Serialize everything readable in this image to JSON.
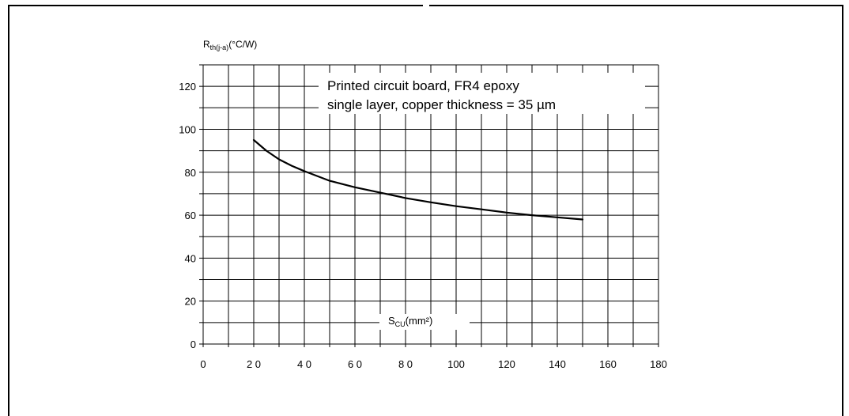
{
  "figure_title": "",
  "chart_data": {
    "type": "line",
    "title": "",
    "ylabel_main": "R",
    "ylabel_sub": "th(j-a)",
    "ylabel_unit": "(°C/W)",
    "xlabel_main": "S",
    "xlabel_sub": "CU",
    "xlabel_unit": "(mm²)",
    "annotation": [
      "Printed circuit board, FR4 epoxy",
      "single layer, copper thickness = 35 µm"
    ],
    "xlim": [
      0,
      180
    ],
    "ylim": [
      0,
      130
    ],
    "x_ticks": [
      0,
      20,
      40,
      60,
      80,
      100,
      120,
      140,
      160,
      180
    ],
    "x_tick_labels": [
      "0",
      "2 0",
      "4 0",
      "6 0",
      "8 0",
      "100",
      "120",
      "140",
      "160",
      "180"
    ],
    "y_ticks": [
      0,
      20,
      40,
      60,
      80,
      100,
      120
    ],
    "y_tick_labels": [
      "0",
      "20",
      "40",
      "60",
      "80",
      "100",
      "120"
    ],
    "grid": true,
    "series": [
      {
        "x": [
          20,
          25,
          30,
          35,
          40,
          50,
          60,
          70,
          80,
          90,
          100,
          110,
          120,
          130,
          140,
          150
        ],
        "y": [
          95,
          90,
          86,
          83,
          80.5,
          76,
          73,
          70.5,
          68,
          66,
          64.2,
          62.7,
          61.2,
          60,
          59,
          58
        ]
      }
    ]
  }
}
